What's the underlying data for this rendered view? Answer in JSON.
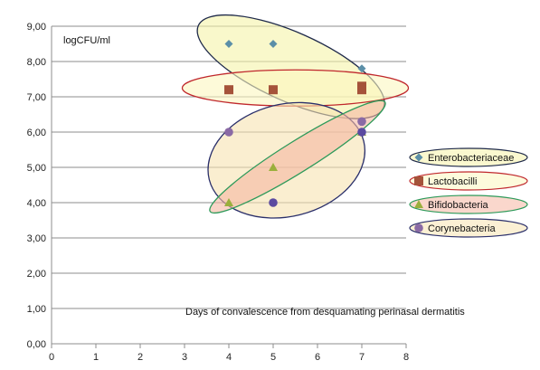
{
  "chart_data": {
    "type": "scatter",
    "ylabel_note": "logCFU/ml",
    "x_annotation": "Days of convalescence from desquamating perinasal dermatitis",
    "xlim": [
      0,
      8
    ],
    "ylim": [
      0,
      9
    ],
    "x_ticks": [
      "0",
      "1",
      "2",
      "3",
      "4",
      "5",
      "6",
      "7",
      "8"
    ],
    "y_ticks": [
      "0,00",
      "1,00",
      "2,00",
      "3,00",
      "4,00",
      "5,00",
      "6,00",
      "7,00",
      "8,00",
      "9,00"
    ],
    "grid": "horizontal",
    "legend_position": "right",
    "series": [
      {
        "name": "Enterobacteriaceae",
        "marker": "diamond",
        "color": "#5b8fa8",
        "highlight_fill": "#f5f3a8",
        "highlight_stroke": "#1f2a4a",
        "points": [
          {
            "x": 4,
            "y": 8.5
          },
          {
            "x": 5,
            "y": 8.5
          },
          {
            "x": 7,
            "y": 7.8
          }
        ]
      },
      {
        "name": "Lactobacilli",
        "marker": "square",
        "color": "#a5533a",
        "highlight_fill": "#fbf7bf",
        "highlight_stroke": "#c0282d",
        "points": [
          {
            "x": 4,
            "y": 7.2
          },
          {
            "x": 5,
            "y": 7.2
          },
          {
            "x": 7,
            "y": 7.3
          },
          {
            "x": 7,
            "y": 7.2
          }
        ]
      },
      {
        "name": "Bifidobacteria",
        "marker": "triangle",
        "color": "#9aaf3c",
        "highlight_fill": "#f5b7a2",
        "highlight_stroke": "#2e9a5a",
        "points": [
          {
            "x": 4,
            "y": 4.0
          },
          {
            "x": 5,
            "y": 5.0
          },
          {
            "x": 7,
            "y": 6.0
          }
        ]
      },
      {
        "name": "Corynebacteria",
        "marker": "circle",
        "color": "#8a6aa5",
        "highlight_fill": "#f7e3b0",
        "highlight_stroke": "#2a2f6a",
        "points": [
          {
            "x": 4,
            "y": 6.0
          },
          {
            "x": 5,
            "y": 4.0
          },
          {
            "x": 7,
            "y": 6.3
          },
          {
            "x": 7,
            "y": 6.0
          }
        ]
      }
    ],
    "colors": {
      "grid": "#8c8c8c",
      "axis": "#8c8c8c",
      "circle_point_dark": "#5b4aa0"
    }
  }
}
